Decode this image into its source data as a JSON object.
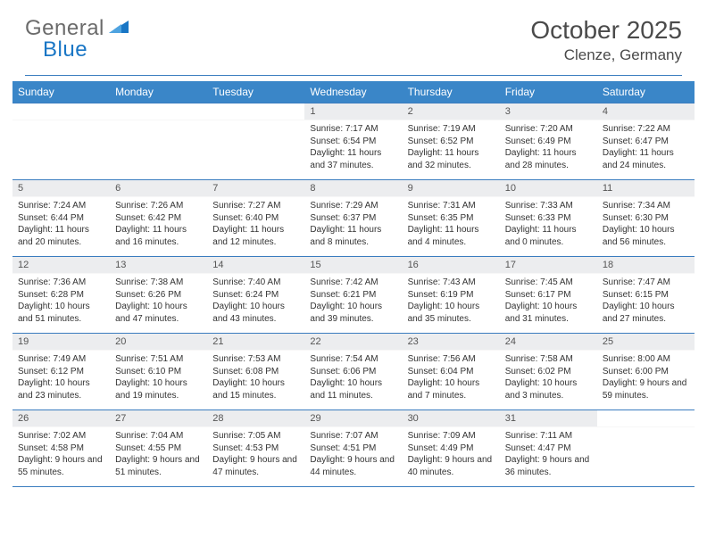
{
  "brand": {
    "word1": "General",
    "word2": "Blue",
    "word1_color": "#6b6b6b",
    "word2_color": "#1976c5",
    "swoosh_color": "#1976c5"
  },
  "title": {
    "month": "October 2025",
    "location": "Clenze, Germany"
  },
  "colors": {
    "header_bg": "#3a86c8",
    "header_text": "#ffffff",
    "rule": "#3a7cbf",
    "daynum_bg": "#ecedef",
    "daynum_text": "#555555",
    "body_text": "#333333",
    "page_bg": "#ffffff"
  },
  "typography": {
    "month_fontsize": 28,
    "location_fontsize": 17,
    "dayheader_fontsize": 12,
    "daynum_fontsize": 11,
    "cell_fontsize": 10
  },
  "calendar": {
    "type": "table",
    "day_headers": [
      "Sunday",
      "Monday",
      "Tuesday",
      "Wednesday",
      "Thursday",
      "Friday",
      "Saturday"
    ],
    "weeks": [
      [
        null,
        null,
        null,
        {
          "num": "1",
          "sunrise": "Sunrise: 7:17 AM",
          "sunset": "Sunset: 6:54 PM",
          "daylight": "Daylight: 11 hours and 37 minutes."
        },
        {
          "num": "2",
          "sunrise": "Sunrise: 7:19 AM",
          "sunset": "Sunset: 6:52 PM",
          "daylight": "Daylight: 11 hours and 32 minutes."
        },
        {
          "num": "3",
          "sunrise": "Sunrise: 7:20 AM",
          "sunset": "Sunset: 6:49 PM",
          "daylight": "Daylight: 11 hours and 28 minutes."
        },
        {
          "num": "4",
          "sunrise": "Sunrise: 7:22 AM",
          "sunset": "Sunset: 6:47 PM",
          "daylight": "Daylight: 11 hours and 24 minutes."
        }
      ],
      [
        {
          "num": "5",
          "sunrise": "Sunrise: 7:24 AM",
          "sunset": "Sunset: 6:44 PM",
          "daylight": "Daylight: 11 hours and 20 minutes."
        },
        {
          "num": "6",
          "sunrise": "Sunrise: 7:26 AM",
          "sunset": "Sunset: 6:42 PM",
          "daylight": "Daylight: 11 hours and 16 minutes."
        },
        {
          "num": "7",
          "sunrise": "Sunrise: 7:27 AM",
          "sunset": "Sunset: 6:40 PM",
          "daylight": "Daylight: 11 hours and 12 minutes."
        },
        {
          "num": "8",
          "sunrise": "Sunrise: 7:29 AM",
          "sunset": "Sunset: 6:37 PM",
          "daylight": "Daylight: 11 hours and 8 minutes."
        },
        {
          "num": "9",
          "sunrise": "Sunrise: 7:31 AM",
          "sunset": "Sunset: 6:35 PM",
          "daylight": "Daylight: 11 hours and 4 minutes."
        },
        {
          "num": "10",
          "sunrise": "Sunrise: 7:33 AM",
          "sunset": "Sunset: 6:33 PM",
          "daylight": "Daylight: 11 hours and 0 minutes."
        },
        {
          "num": "11",
          "sunrise": "Sunrise: 7:34 AM",
          "sunset": "Sunset: 6:30 PM",
          "daylight": "Daylight: 10 hours and 56 minutes."
        }
      ],
      [
        {
          "num": "12",
          "sunrise": "Sunrise: 7:36 AM",
          "sunset": "Sunset: 6:28 PM",
          "daylight": "Daylight: 10 hours and 51 minutes."
        },
        {
          "num": "13",
          "sunrise": "Sunrise: 7:38 AM",
          "sunset": "Sunset: 6:26 PM",
          "daylight": "Daylight: 10 hours and 47 minutes."
        },
        {
          "num": "14",
          "sunrise": "Sunrise: 7:40 AM",
          "sunset": "Sunset: 6:24 PM",
          "daylight": "Daylight: 10 hours and 43 minutes."
        },
        {
          "num": "15",
          "sunrise": "Sunrise: 7:42 AM",
          "sunset": "Sunset: 6:21 PM",
          "daylight": "Daylight: 10 hours and 39 minutes."
        },
        {
          "num": "16",
          "sunrise": "Sunrise: 7:43 AM",
          "sunset": "Sunset: 6:19 PM",
          "daylight": "Daylight: 10 hours and 35 minutes."
        },
        {
          "num": "17",
          "sunrise": "Sunrise: 7:45 AM",
          "sunset": "Sunset: 6:17 PM",
          "daylight": "Daylight: 10 hours and 31 minutes."
        },
        {
          "num": "18",
          "sunrise": "Sunrise: 7:47 AM",
          "sunset": "Sunset: 6:15 PM",
          "daylight": "Daylight: 10 hours and 27 minutes."
        }
      ],
      [
        {
          "num": "19",
          "sunrise": "Sunrise: 7:49 AM",
          "sunset": "Sunset: 6:12 PM",
          "daylight": "Daylight: 10 hours and 23 minutes."
        },
        {
          "num": "20",
          "sunrise": "Sunrise: 7:51 AM",
          "sunset": "Sunset: 6:10 PM",
          "daylight": "Daylight: 10 hours and 19 minutes."
        },
        {
          "num": "21",
          "sunrise": "Sunrise: 7:53 AM",
          "sunset": "Sunset: 6:08 PM",
          "daylight": "Daylight: 10 hours and 15 minutes."
        },
        {
          "num": "22",
          "sunrise": "Sunrise: 7:54 AM",
          "sunset": "Sunset: 6:06 PM",
          "daylight": "Daylight: 10 hours and 11 minutes."
        },
        {
          "num": "23",
          "sunrise": "Sunrise: 7:56 AM",
          "sunset": "Sunset: 6:04 PM",
          "daylight": "Daylight: 10 hours and 7 minutes."
        },
        {
          "num": "24",
          "sunrise": "Sunrise: 7:58 AM",
          "sunset": "Sunset: 6:02 PM",
          "daylight": "Daylight: 10 hours and 3 minutes."
        },
        {
          "num": "25",
          "sunrise": "Sunrise: 8:00 AM",
          "sunset": "Sunset: 6:00 PM",
          "daylight": "Daylight: 9 hours and 59 minutes."
        }
      ],
      [
        {
          "num": "26",
          "sunrise": "Sunrise: 7:02 AM",
          "sunset": "Sunset: 4:58 PM",
          "daylight": "Daylight: 9 hours and 55 minutes."
        },
        {
          "num": "27",
          "sunrise": "Sunrise: 7:04 AM",
          "sunset": "Sunset: 4:55 PM",
          "daylight": "Daylight: 9 hours and 51 minutes."
        },
        {
          "num": "28",
          "sunrise": "Sunrise: 7:05 AM",
          "sunset": "Sunset: 4:53 PM",
          "daylight": "Daylight: 9 hours and 47 minutes."
        },
        {
          "num": "29",
          "sunrise": "Sunrise: 7:07 AM",
          "sunset": "Sunset: 4:51 PM",
          "daylight": "Daylight: 9 hours and 44 minutes."
        },
        {
          "num": "30",
          "sunrise": "Sunrise: 7:09 AM",
          "sunset": "Sunset: 4:49 PM",
          "daylight": "Daylight: 9 hours and 40 minutes."
        },
        {
          "num": "31",
          "sunrise": "Sunrise: 7:11 AM",
          "sunset": "Sunset: 4:47 PM",
          "daylight": "Daylight: 9 hours and 36 minutes."
        },
        null
      ]
    ]
  }
}
